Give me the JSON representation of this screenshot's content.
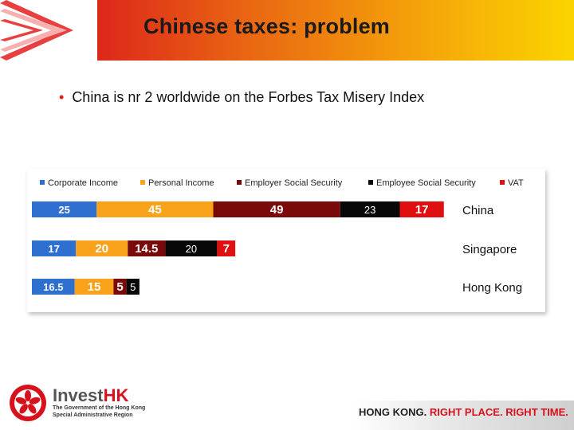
{
  "slide": {
    "title": "Chinese taxes: problem",
    "bullet": "China is nr 2 worldwide on the Forbes Tax Misery Index"
  },
  "chart_data": {
    "type": "bar",
    "orientation": "horizontal",
    "stacked": true,
    "categories": [
      "China",
      "Singapore",
      "Hong Kong"
    ],
    "series": [
      {
        "name": "Corporate Income",
        "color": "#2e6fd0",
        "values": [
          25,
          17,
          16.5
        ]
      },
      {
        "name": "Personal Income",
        "color": "#f9a21c",
        "values": [
          45,
          20,
          15
        ]
      },
      {
        "name": "Employer Social Security",
        "color": "#7a0a0a",
        "values": [
          49,
          14.5,
          5
        ]
      },
      {
        "name": "Employee Social Security",
        "color": "#080808",
        "values": [
          23,
          20,
          5
        ]
      },
      {
        "name": "VAT",
        "color": "#e01010",
        "values": [
          17,
          7,
          null
        ]
      }
    ],
    "legend_position": "top",
    "grid": false
  },
  "footer": {
    "brand_invest": "Invest",
    "brand_hk": "HK",
    "gov_line1": "The Government of the Hong Kong",
    "gov_line2": "Special Administrative Region",
    "tagline_part1": "HONG KONG.",
    "tagline_part2": "RIGHT PLACE. RIGHT TIME."
  }
}
